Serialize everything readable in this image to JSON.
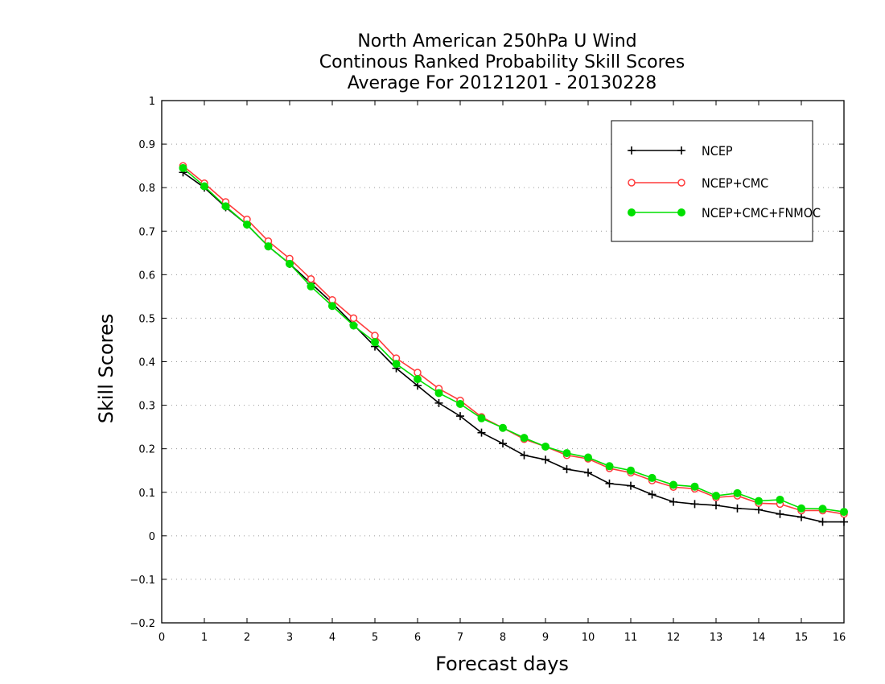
{
  "chart_data": {
    "type": "line",
    "title_lines": [
      "North American 250hPa U Wind",
      "Continous Ranked Probability Skill Scores",
      "Average For 20121201 - 20130228"
    ],
    "xlabel": "Forecast days",
    "ylabel": "Skill Scores",
    "xlim": [
      0,
      16
    ],
    "ylim": [
      -0.2,
      1
    ],
    "x_ticks": [
      0,
      1,
      2,
      3,
      4,
      5,
      6,
      7,
      8,
      9,
      10,
      11,
      12,
      13,
      14,
      15,
      16
    ],
    "y_ticks": [
      -0.2,
      -0.1,
      0,
      0.1,
      0.2,
      0.3,
      0.4,
      0.5,
      0.6,
      0.7,
      0.8,
      0.9,
      1
    ],
    "x_tick_labels": [
      "0",
      "1",
      "2",
      "3",
      "4",
      "5",
      "6",
      "7",
      "8",
      "9",
      "10",
      "11",
      "12",
      "13",
      "14",
      "15",
      "16"
    ],
    "y_tick_labels": [
      "−0.2",
      "−0.1",
      "0",
      "0.1",
      "0.2",
      "0.3",
      "0.4",
      "0.5",
      "0.6",
      "0.7",
      "0.8",
      "0.9",
      "1"
    ],
    "grid": "horizontal-dotted",
    "legend_position": "top-right",
    "x": [
      0.5,
      1,
      1.5,
      2,
      2.5,
      3,
      3.5,
      4,
      4.5,
      5,
      5.5,
      6,
      6.5,
      7,
      7.5,
      8,
      8.5,
      9,
      9.5,
      10,
      10.5,
      11,
      11.5,
      12,
      12.5,
      13,
      13.5,
      14,
      14.5,
      15,
      15.5,
      16
    ],
    "series": [
      {
        "name": "NCEP",
        "color": "#000000",
        "marker": "plus",
        "values": [
          0.835,
          0.8,
          0.755,
          0.715,
          0.665,
          0.625,
          0.58,
          0.535,
          0.485,
          0.435,
          0.385,
          0.345,
          0.305,
          0.275,
          0.237,
          0.212,
          0.185,
          0.175,
          0.153,
          0.145,
          0.12,
          0.115,
          0.095,
          0.078,
          0.073,
          0.07,
          0.063,
          0.06,
          0.05,
          0.043,
          0.032,
          0.032
        ]
      },
      {
        "name": "NCEP+CMC",
        "color": "#ff3b3b",
        "marker": "open-circle",
        "values": [
          0.85,
          0.81,
          0.767,
          0.727,
          0.677,
          0.637,
          0.59,
          0.542,
          0.5,
          0.46,
          0.408,
          0.375,
          0.338,
          0.311,
          0.273,
          0.248,
          0.222,
          0.205,
          0.185,
          0.177,
          0.155,
          0.145,
          0.127,
          0.112,
          0.108,
          0.088,
          0.092,
          0.075,
          0.073,
          0.058,
          0.058,
          0.05
        ]
      },
      {
        "name": "NCEP+CMC+FNMOC",
        "color": "#00e000",
        "marker": "filled-circle",
        "values": [
          0.845,
          0.803,
          0.757,
          0.715,
          0.665,
          0.625,
          0.573,
          0.528,
          0.483,
          0.445,
          0.395,
          0.36,
          0.328,
          0.303,
          0.27,
          0.248,
          0.225,
          0.205,
          0.19,
          0.18,
          0.16,
          0.15,
          0.133,
          0.117,
          0.113,
          0.092,
          0.098,
          0.08,
          0.083,
          0.063,
          0.062,
          0.055
        ]
      }
    ]
  }
}
